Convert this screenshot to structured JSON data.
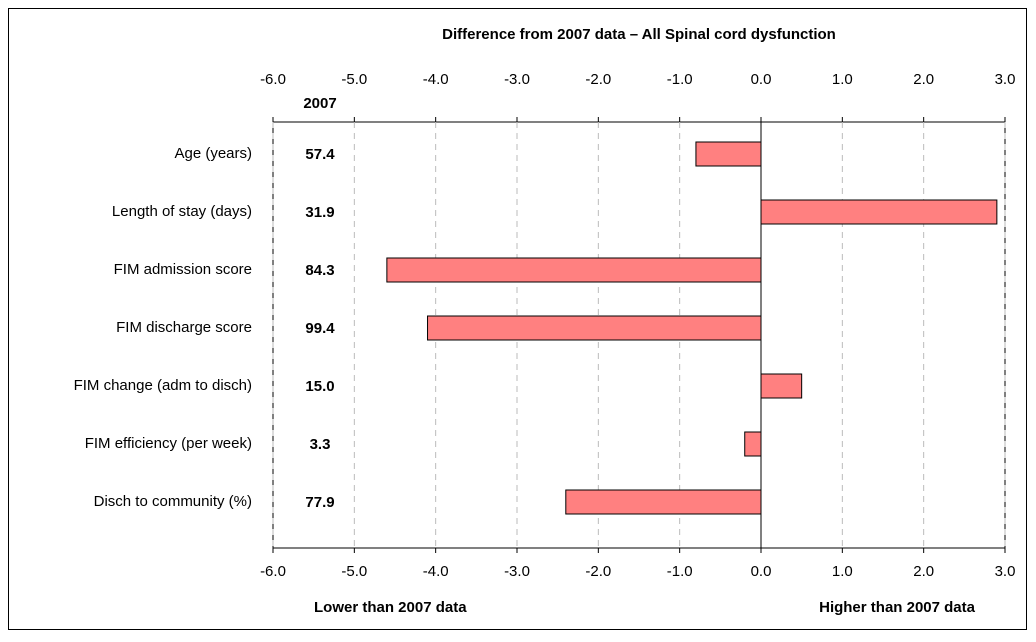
{
  "chart_data": {
    "type": "bar",
    "orientation": "horizontal",
    "title": "Difference from 2007 data – All Spinal cord dysfunction",
    "categories": [
      "Age (years)",
      "Length of stay (days)",
      "FIM admission score",
      "FIM discharge score",
      "FIM change (adm to disch)",
      "FIM efficiency (per week)",
      "Disch to community (%)"
    ],
    "values": [
      -0.8,
      2.9,
      -4.6,
      -4.1,
      0.5,
      -0.2,
      -2.4
    ],
    "color": "#ff8080",
    "column_title": "2007",
    "column_values": [
      "57.4",
      "31.9",
      "84.3",
      "99.4",
      "15.0",
      "3.3",
      "77.9"
    ],
    "xlim": [
      -6,
      3
    ],
    "xticks": [
      {
        "value": -6,
        "label": "-6.0"
      },
      {
        "value": -5,
        "label": "-5.0"
      },
      {
        "value": -4,
        "label": "-4.0"
      },
      {
        "value": -3,
        "label": "-3.0"
      },
      {
        "value": -2,
        "label": "-2.0"
      },
      {
        "value": -1,
        "label": "-1.0"
      },
      {
        "value": 0,
        "label": "0.0"
      },
      {
        "value": 1,
        "label": "1.0"
      },
      {
        "value": 2,
        "label": "2.0"
      },
      {
        "value": 3,
        "label": "3.0"
      }
    ],
    "grid": true,
    "left_note": "Lower than 2007 data",
    "right_note": "Higher than 2007 data"
  }
}
